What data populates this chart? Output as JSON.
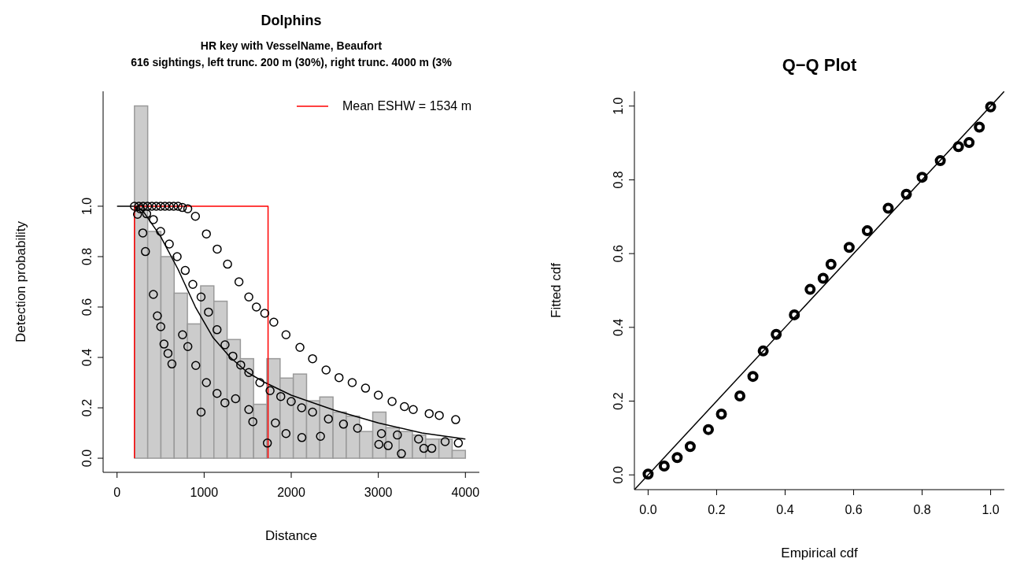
{
  "chart_data": [
    {
      "type": "scatter",
      "title": "Dolphins",
      "subtitle": "HR key with VesselName, Beaufort\n616 sightings, left trunc. 200 m (30%), right trunc. 4000 m (3%",
      "xlabel": "Distance",
      "ylabel": "Detection probability",
      "xlim": [
        -160,
        4160
      ],
      "ylim": [
        -0.056,
        1.456
      ],
      "xticks": [
        0,
        1000,
        2000,
        3000,
        4000
      ],
      "yticks": [
        {
          "value": 0,
          "label": "0.0"
        },
        {
          "value": 0.2,
          "label": "0.2"
        },
        {
          "value": 0.4,
          "label": "0.4"
        },
        {
          "value": 0.6,
          "label": "0.6"
        },
        {
          "value": 0.8,
          "label": "0.8"
        },
        {
          "value": 1,
          "label": "1.0"
        }
      ],
      "legend": "top right",
      "series": [
        {
          "type": "histogram",
          "color": "#cccccc",
          "bins": [
            200,
            352,
            504,
            656,
            808,
            960,
            1112,
            1264,
            1416,
            1568,
            1720,
            1872,
            2024,
            2176,
            2328,
            2480,
            2632,
            2784,
            2936,
            3088,
            3240,
            3392,
            3544,
            3696,
            3848,
            4000
          ],
          "values": [
            1.398,
            0.9,
            0.8,
            0.655,
            0.533,
            0.684,
            0.623,
            0.471,
            0.395,
            0.214,
            0.395,
            0.318,
            0.334,
            0.228,
            0.243,
            0.183,
            0.167,
            0.106,
            0.183,
            0.121,
            0.106,
            0.092,
            0.076,
            0.076,
            0.031
          ]
        },
        {
          "marker": "circle",
          "color": "#000000",
          "x": [
            200,
            250,
            300,
            350,
            400,
            450,
            500,
            550,
            600,
            650,
            700,
            750,
            812,
            900,
            1026,
            1150,
            1269,
            1400,
            1513,
            1600,
            1696,
            1800,
            1940,
            2100,
            2245,
            2400,
            2549,
            2700,
            2853,
            3000,
            3158,
            3300,
            3401,
            3584,
            3700,
            3888,
            265,
            340,
            417,
            500,
            600,
            690,
            783,
            870,
            965,
            1050,
            1148,
            1240,
            1330,
            1420,
            1513,
            1640,
            1757,
            1880,
            2000,
            2120,
            2245,
            2427,
            2600,
            2762,
            3036,
            3219,
            3462,
            3767,
            3919,
            235,
            296,
            326,
            417,
            463,
            502,
            539,
            585,
            630,
            752,
            813,
            904,
            965,
            1026,
            1148,
            1239,
            1361,
            1513,
            1559,
            1726,
            1818,
            1940,
            2122,
            2336,
            3006,
            3113,
            3265,
            3523,
            3614
          ],
          "values": [
            1,
            1,
            1,
            1,
            1,
            1,
            1,
            1,
            1,
            1,
            1,
            0.995,
            0.99,
            0.96,
            0.89,
            0.83,
            0.77,
            0.7,
            0.64,
            0.6,
            0.575,
            0.54,
            0.49,
            0.44,
            0.395,
            0.35,
            0.32,
            0.3,
            0.278,
            0.25,
            0.225,
            0.205,
            0.193,
            0.177,
            0.17,
            0.153,
            0.99,
            0.97,
            0.947,
            0.9,
            0.85,
            0.8,
            0.745,
            0.69,
            0.64,
            0.58,
            0.51,
            0.45,
            0.405,
            0.37,
            0.34,
            0.3,
            0.268,
            0.245,
            0.225,
            0.2,
            0.183,
            0.156,
            0.135,
            0.119,
            0.098,
            0.092,
            0.076,
            0.066,
            0.06,
            0.968,
            0.894,
            0.82,
            0.65,
            0.565,
            0.522,
            0.453,
            0.416,
            0.374,
            0.49,
            0.443,
            0.368,
            0.183,
            0.3,
            0.257,
            0.22,
            0.236,
            0.193,
            0.145,
            0.06,
            0.14,
            0.098,
            0.082,
            0.087,
            0.055,
            0.05,
            0.018,
            0.039,
            0.039
          ]
        },
        {
          "type": "line",
          "color": "#000000",
          "x": [
            0,
            200,
            300,
            500,
            700,
            900,
            1100,
            1300,
            1500,
            1700,
            2000,
            2500,
            3000,
            3500,
            4000
          ],
          "values": [
            1,
            1,
            0.98,
            0.88,
            0.75,
            0.6,
            0.48,
            0.4,
            0.34,
            0.3,
            0.25,
            0.19,
            0.14,
            0.1,
            0.076
          ]
        },
        {
          "type": "line",
          "name": "Mean ESHW = 1534 m",
          "color": "#ff0000",
          "x": [
            200,
            200,
            1734,
            1734
          ],
          "values": [
            0,
            1,
            1,
            0
          ]
        }
      ]
    },
    {
      "type": "scatter",
      "title": "Q−Q Plot",
      "xlabel": "Empirical cdf",
      "ylabel": "Fitted cdf",
      "xlim": [
        -0.04,
        1.04
      ],
      "ylim": [
        -0.04,
        1.04
      ],
      "xticks": [
        {
          "value": 0,
          "label": "0.0"
        },
        {
          "value": 0.2,
          "label": "0.2"
        },
        {
          "value": 0.4,
          "label": "0.4"
        },
        {
          "value": 0.6,
          "label": "0.6"
        },
        {
          "value": 0.8,
          "label": "0.8"
        },
        {
          "value": 1,
          "label": "1.0"
        }
      ],
      "yticks": [
        {
          "value": 0,
          "label": "0.0"
        },
        {
          "value": 0.2,
          "label": "0.2"
        },
        {
          "value": 0.4,
          "label": "0.4"
        },
        {
          "value": 0.6,
          "label": "0.6"
        },
        {
          "value": 0.8,
          "label": "0.8"
        },
        {
          "value": 1,
          "label": "1.0"
        }
      ],
      "series": [
        {
          "marker": "circle",
          "color": "#000000",
          "x": [
            0,
            0.047,
            0.085,
            0.123,
            0.176,
            0.214,
            0.268,
            0.306,
            0.336,
            0.374,
            0.427,
            0.473,
            0.511,
            0.534,
            0.587,
            0.64,
            0.701,
            0.754,
            0.8,
            0.853,
            0.906,
            0.937,
            0.967,
            1
          ],
          "values": [
            0.002,
            0.024,
            0.047,
            0.077,
            0.123,
            0.165,
            0.214,
            0.267,
            0.336,
            0.381,
            0.434,
            0.503,
            0.533,
            0.571,
            0.617,
            0.662,
            0.723,
            0.761,
            0.807,
            0.852,
            0.89,
            0.901,
            0.943,
            0.998
          ]
        },
        {
          "type": "line",
          "color": "#000000",
          "x": [
            -0.04,
            1.04
          ],
          "values": [
            -0.04,
            1.04
          ]
        }
      ]
    }
  ]
}
